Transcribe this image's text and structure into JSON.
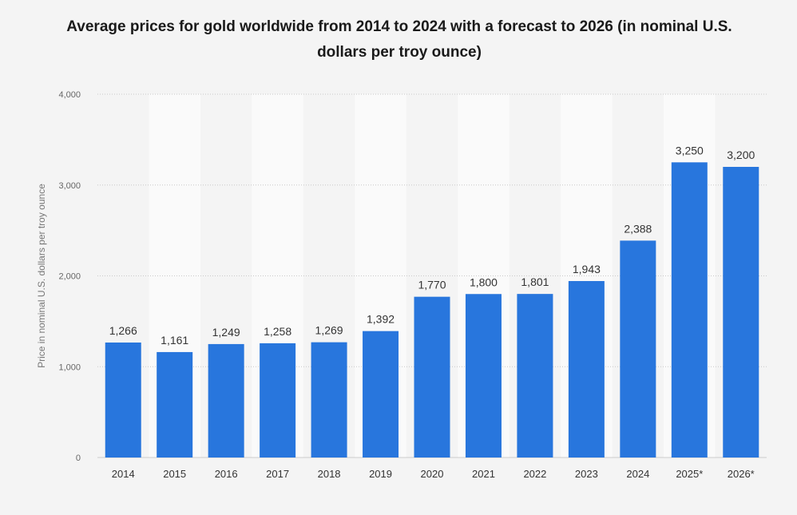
{
  "chart_data": {
    "type": "bar",
    "title": "Average prices for gold worldwide from 2014 to 2024 with a forecast to 2026 (in nominal U.S. dollars per troy ounce)",
    "xlabel": "",
    "ylabel": "Price in nominal U.S. dollars per troy ounce",
    "categories": [
      "2014",
      "2015",
      "2016",
      "2017",
      "2018",
      "2019",
      "2020",
      "2021",
      "2022",
      "2023",
      "2024",
      "2025*",
      "2026*"
    ],
    "values": [
      1266,
      1161,
      1249,
      1258,
      1269,
      1392,
      1770,
      1800,
      1801,
      1943,
      2388,
      3250,
      3200
    ],
    "data_labels": [
      "1,266",
      "1,161",
      "1,249",
      "1,258",
      "1,269",
      "1,392",
      "1,770",
      "1,800",
      "1,801",
      "1,943",
      "2,388",
      "3,250",
      "3,200"
    ],
    "ylim": [
      0,
      4000
    ],
    "yticks": [
      0,
      1000,
      2000,
      3000,
      4000
    ],
    "ytick_labels": [
      "0",
      "1,000",
      "2,000",
      "3,000",
      "4,000"
    ],
    "grid": true,
    "bar_color": "#2876dd"
  }
}
